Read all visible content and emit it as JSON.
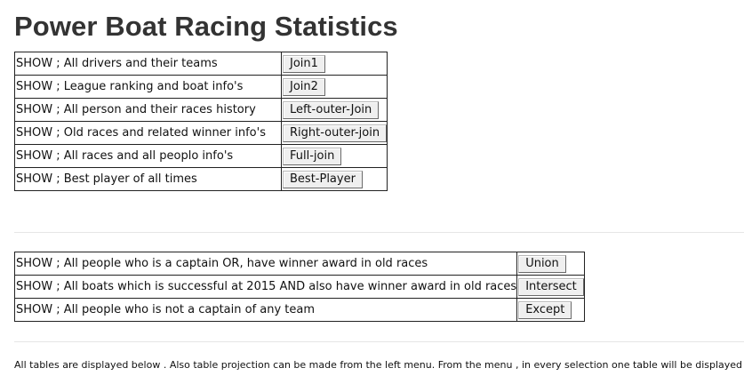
{
  "page": {
    "title": "Power Boat Racing Statistics",
    "footer": "All tables are displayed below . Also table projection can be made from the left menu. From the menu , in every selection one table will be displayed ."
  },
  "join_queries": [
    {
      "description": "SHOW ; All drivers and their teams",
      "button": "Join1"
    },
    {
      "description": "SHOW ; League ranking and boat info's",
      "button": "Join2"
    },
    {
      "description": "SHOW ; All person and their races history",
      "button": "Left-outer-Join"
    },
    {
      "description": "SHOW ; Old races and related winner info's",
      "button": "Right-outer-join"
    },
    {
      "description": "SHOW ; All races and all peoplo info's",
      "button": "Full-join"
    },
    {
      "description": "SHOW ; Best player of all times",
      "button": "Best-Player"
    }
  ],
  "set_queries": [
    {
      "description": "SHOW ; All people who is a captain OR, have winner award in old races",
      "button": "Union"
    },
    {
      "description": "SHOW ; All boats which is successful at 2015 AND also have winner award in old races",
      "button": "Intersect"
    },
    {
      "description": "SHOW ; All people who is not a captain of any team",
      "button": "Except"
    }
  ]
}
